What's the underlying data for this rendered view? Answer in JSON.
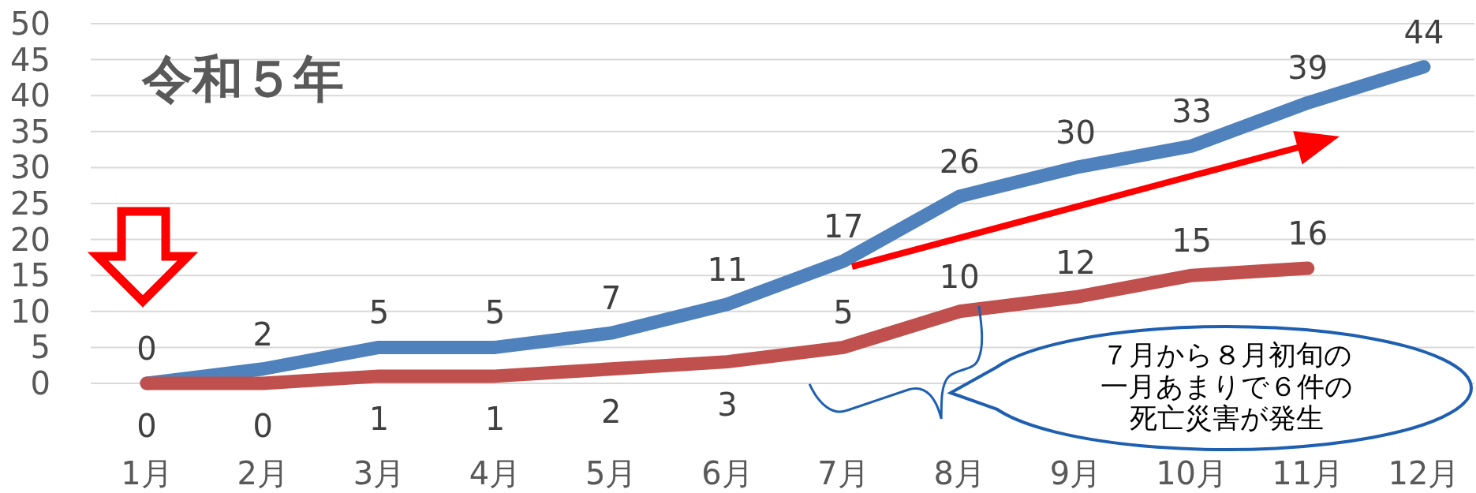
{
  "chart_data": {
    "type": "line",
    "title": "令和５年",
    "categories": [
      "1月",
      "2月",
      "3月",
      "4月",
      "5月",
      "6月",
      "7月",
      "8月",
      "9月",
      "10月",
      "11月",
      "12月"
    ],
    "series": [
      {
        "color": "#4f81bd",
        "values": [
          0,
          2,
          5,
          5,
          7,
          11,
          17,
          26,
          30,
          33,
          39,
          44
        ]
      },
      {
        "color": "#c0504d",
        "values": [
          0,
          0,
          1,
          1,
          2,
          3,
          5,
          10,
          12,
          15,
          16,
          null
        ]
      }
    ],
    "ylim": [
      0,
      50
    ],
    "yticks": [
      0,
      5,
      10,
      15,
      20,
      25,
      30,
      35,
      40,
      45,
      50
    ],
    "grid": "y",
    "data_labels": true,
    "marker": "none",
    "line_style": "solid",
    "annotations": [
      "７月から８月初旬の一月あまりで６件の死亡災害が発生"
    ]
  }
}
